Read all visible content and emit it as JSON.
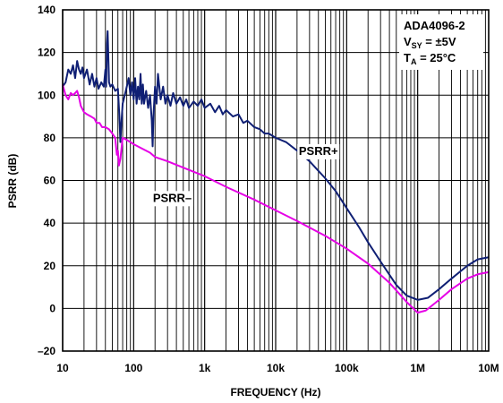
{
  "chart_data": {
    "type": "line",
    "annotation": {
      "device": "ADA4096-2",
      "vsy_prefix": "V",
      "vsy_sub": "SY",
      "vsy_value": " = ±5V",
      "ta_prefix": "T",
      "ta_sub": "A",
      "ta_value": " = 25°C"
    },
    "xlabel": "FREQUENCY (Hz)",
    "ylabel": "PSRR (dB)",
    "x_scale": "log",
    "xlim": [
      10,
      10000000
    ],
    "ylim": [
      -20,
      140
    ],
    "grid": true,
    "x_ticks": [
      {
        "value": 10,
        "label": "10"
      },
      {
        "value": 100,
        "label": "100"
      },
      {
        "value": 1000,
        "label": "1k"
      },
      {
        "value": 10000,
        "label": "10k"
      },
      {
        "value": 100000,
        "label": "100k"
      },
      {
        "value": 1000000,
        "label": "1M"
      },
      {
        "value": 10000000,
        "label": "10M"
      }
    ],
    "y_ticks": [
      {
        "value": -20,
        "label": "–20"
      },
      {
        "value": 0,
        "label": "0"
      },
      {
        "value": 20,
        "label": "20"
      },
      {
        "value": 40,
        "label": "40"
      },
      {
        "value": 60,
        "label": "60"
      },
      {
        "value": 80,
        "label": "80"
      },
      {
        "value": 100,
        "label": "100"
      },
      {
        "value": 120,
        "label": "120"
      },
      {
        "value": 140,
        "label": "140"
      }
    ],
    "series": [
      {
        "name": "PSRR+",
        "color": "#0f1f74",
        "label_at": {
          "x": 40000,
          "y": 72
        },
        "points": [
          [
            10,
            104
          ],
          [
            11,
            106
          ],
          [
            12,
            112
          ],
          [
            13,
            110
          ],
          [
            14,
            114
          ],
          [
            15,
            108
          ],
          [
            16,
            116
          ],
          [
            17,
            112
          ],
          [
            18,
            110
          ],
          [
            19,
            113
          ],
          [
            20,
            108
          ],
          [
            22,
            112
          ],
          [
            24,
            105
          ],
          [
            26,
            110
          ],
          [
            28,
            104
          ],
          [
            30,
            108
          ],
          [
            32,
            103
          ],
          [
            35,
            106
          ],
          [
            38,
            104
          ],
          [
            40,
            112
          ],
          [
            41,
            104
          ],
          [
            42,
            124
          ],
          [
            43,
            130
          ],
          [
            44,
            118
          ],
          [
            45,
            106
          ],
          [
            47,
            104
          ],
          [
            50,
            105
          ],
          [
            55,
            102
          ],
          [
            60,
            103
          ],
          [
            63,
            90
          ],
          [
            65,
            78
          ],
          [
            67,
            86
          ],
          [
            70,
            96
          ],
          [
            75,
            100
          ],
          [
            80,
            104
          ],
          [
            85,
            108
          ],
          [
            90,
            100
          ],
          [
            95,
            106
          ],
          [
            100,
            98
          ],
          [
            105,
            108
          ],
          [
            110,
            96
          ],
          [
            115,
            104
          ],
          [
            120,
            98
          ],
          [
            125,
            110
          ],
          [
            130,
            96
          ],
          [
            135,
            105
          ],
          [
            140,
            96
          ],
          [
            150,
            102
          ],
          [
            160,
            94
          ],
          [
            170,
            100
          ],
          [
            180,
            88
          ],
          [
            185,
            76
          ],
          [
            190,
            90
          ],
          [
            200,
            104
          ],
          [
            210,
            96
          ],
          [
            220,
            110
          ],
          [
            240,
            98
          ],
          [
            260,
            104
          ],
          [
            280,
            96
          ],
          [
            300,
            100
          ],
          [
            330,
            95
          ],
          [
            360,
            101
          ],
          [
            400,
            96
          ],
          [
            450,
            99
          ],
          [
            500,
            95
          ],
          [
            550,
            98
          ],
          [
            600,
            94
          ],
          [
            700,
            97
          ],
          [
            800,
            95
          ],
          [
            900,
            98
          ],
          [
            1000,
            94
          ],
          [
            1200,
            96
          ],
          [
            1400,
            92
          ],
          [
            1600,
            95
          ],
          [
            1800,
            91
          ],
          [
            2000,
            93
          ],
          [
            2500,
            90
          ],
          [
            3000,
            91
          ],
          [
            3500,
            87
          ],
          [
            4000,
            88
          ],
          [
            5000,
            85
          ],
          [
            6000,
            84
          ],
          [
            7000,
            82
          ],
          [
            8000,
            82
          ],
          [
            10000,
            80
          ],
          [
            14000,
            78
          ],
          [
            20000,
            74
          ],
          [
            30000,
            69
          ],
          [
            50000,
            61
          ],
          [
            70000,
            55
          ],
          [
            100000,
            47
          ],
          [
            150000,
            38
          ],
          [
            200000,
            31
          ],
          [
            300000,
            22
          ],
          [
            500000,
            11
          ],
          [
            700000,
            6
          ],
          [
            1000000,
            4
          ],
          [
            1400000,
            5
          ],
          [
            2000000,
            9
          ],
          [
            3000000,
            14
          ],
          [
            5000000,
            20
          ],
          [
            7000000,
            23
          ],
          [
            10000000,
            24
          ]
        ]
      },
      {
        "name": "PSRR–",
        "color": "#e600e6",
        "label_at": {
          "x": 350,
          "y": 50
        },
        "points": [
          [
            10,
            105
          ],
          [
            11,
            100
          ],
          [
            12,
            98
          ],
          [
            13,
            101
          ],
          [
            14,
            100
          ],
          [
            15,
            101
          ],
          [
            16,
            102
          ],
          [
            17,
            99
          ],
          [
            18,
            95
          ],
          [
            20,
            92
          ],
          [
            22,
            91
          ],
          [
            25,
            90
          ],
          [
            28,
            89
          ],
          [
            30,
            87
          ],
          [
            33,
            87
          ],
          [
            36,
            85
          ],
          [
            40,
            85
          ],
          [
            45,
            84
          ],
          [
            50,
            82
          ],
          [
            55,
            80
          ],
          [
            58,
            72
          ],
          [
            60,
            74
          ],
          [
            62,
            67
          ],
          [
            65,
            70
          ],
          [
            70,
            80
          ],
          [
            80,
            79
          ],
          [
            100,
            77
          ],
          [
            130,
            75
          ],
          [
            170,
            73
          ],
          [
            200,
            71
          ],
          [
            300,
            69
          ],
          [
            500,
            66
          ],
          [
            1000,
            62
          ],
          [
            2000,
            57
          ],
          [
            5000,
            51
          ],
          [
            10000,
            46
          ],
          [
            20000,
            41
          ],
          [
            50000,
            34
          ],
          [
            100000,
            28
          ],
          [
            200000,
            21
          ],
          [
            400000,
            12
          ],
          [
            700000,
            3
          ],
          [
            1000000,
            -2
          ],
          [
            1300000,
            -1
          ],
          [
            2000000,
            4
          ],
          [
            3000000,
            9
          ],
          [
            5000000,
            14
          ],
          [
            7000000,
            16
          ],
          [
            10000000,
            17
          ]
        ]
      }
    ]
  }
}
